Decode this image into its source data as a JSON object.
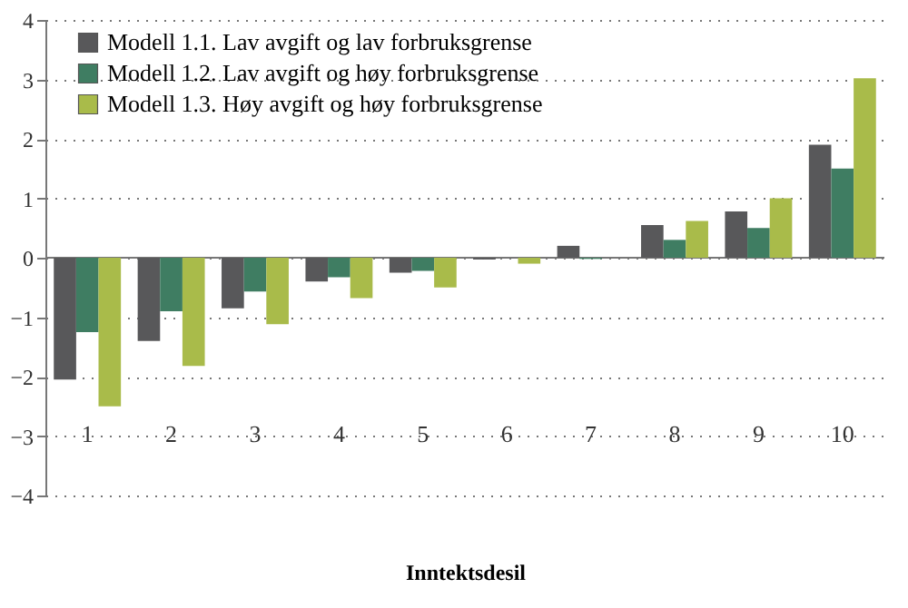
{
  "chart_data": {
    "type": "bar",
    "xlabel": "Inntektsdesil",
    "categories": [
      "1",
      "2",
      "3",
      "4",
      "5",
      "6",
      "7",
      "8",
      "9",
      "10"
    ],
    "series": [
      {
        "name": "Modell 1.1. Lav avgift og lav forbruksgrense",
        "color": "#58585a",
        "values": [
          -2.05,
          -1.4,
          -0.85,
          -0.4,
          -0.25,
          -0.03,
          0.2,
          0.55,
          0.78,
          1.9
        ]
      },
      {
        "name": "Modell 1.2. Lav avgift og høy forbruksgrense",
        "color": "#3f7d62",
        "values": [
          -1.25,
          -0.9,
          -0.57,
          -0.33,
          -0.22,
          0,
          -0.02,
          0.3,
          0.5,
          1.5
        ]
      },
      {
        "name": "Modell 1.3. Høy avgift og høy forbruksgrense",
        "color": "#a9bb4a",
        "values": [
          -2.5,
          -1.82,
          -1.12,
          -0.68,
          -0.5,
          -0.1,
          0,
          0.62,
          1.0,
          3.02
        ]
      }
    ],
    "ylim": [
      -4,
      4
    ],
    "yticks": [
      -4,
      -3,
      -2,
      -1,
      0,
      1,
      2,
      3,
      4
    ],
    "grid": "y",
    "legend": "top left"
  }
}
